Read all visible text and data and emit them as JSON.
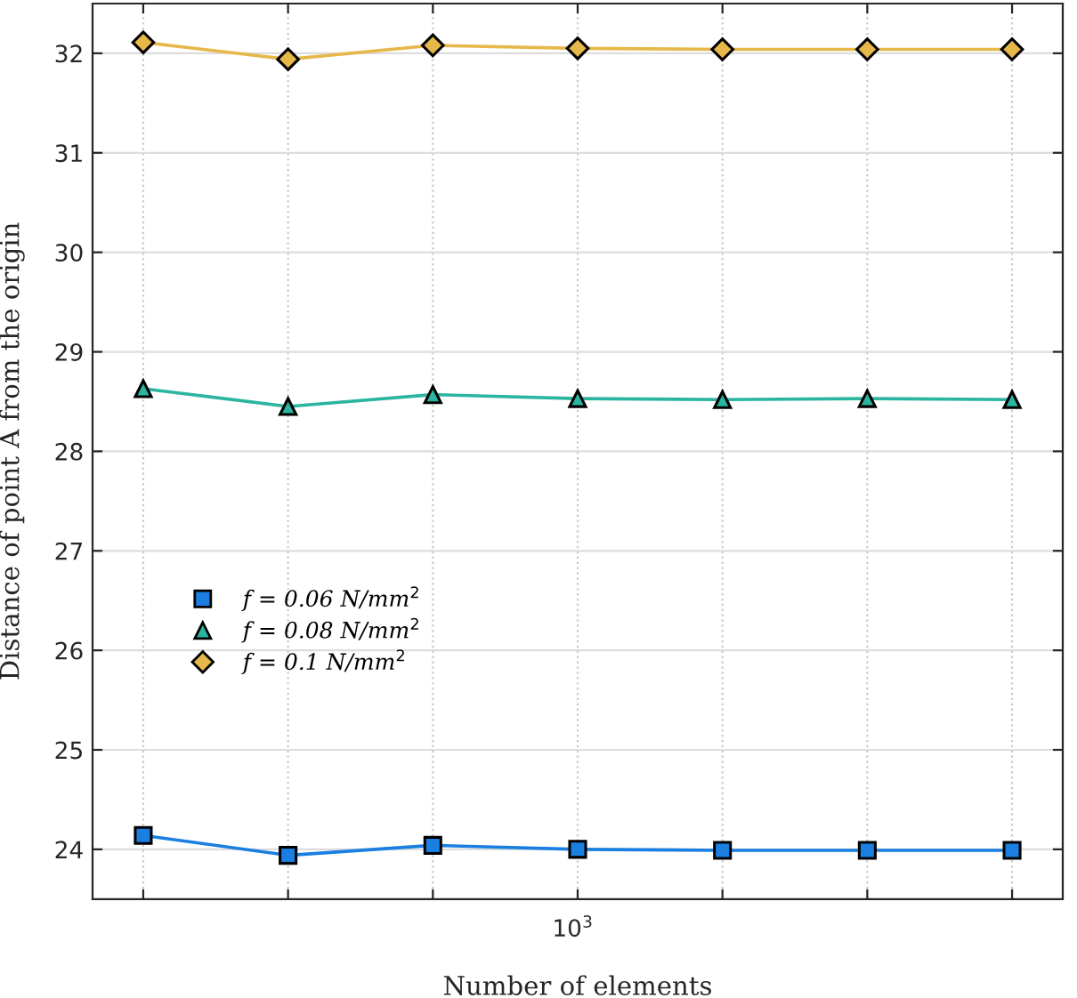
{
  "chart_data": {
    "type": "line",
    "xlabel": "Number of elements",
    "ylabel": "Distance of point A from the origin",
    "categories": [
      null,
      null,
      null,
      null,
      null,
      null,
      null
    ],
    "series": [
      {
        "name": "f = 0.06 N/mm$^{2}$",
        "color": "#1a7fe0",
        "marker": "square",
        "values": [
          24.14,
          23.94,
          24.04,
          24.0,
          23.99,
          23.99,
          23.99
        ]
      },
      {
        "name": "f = 0.08 N/mm$^{2}$",
        "color": "#2bb5a0",
        "marker": "triangle",
        "values": [
          28.63,
          28.45,
          28.57,
          28.53,
          28.52,
          28.53,
          28.52
        ]
      },
      {
        "name": "f = 0.1 N/mm$^{2}$",
        "color": "#e6b84a",
        "marker": "diamond",
        "values": [
          32.11,
          31.94,
          32.08,
          32.05,
          32.04,
          32.04,
          32.04
        ]
      }
    ],
    "annotations": [
      "10$^{3}$"
    ],
    "ylim": [
      23.5,
      32.5
    ],
    "yticks": [
      24,
      25,
      26,
      27,
      28,
      29,
      30,
      31,
      32
    ],
    "grid": true,
    "legend": "left",
    "line_style": "solid"
  }
}
